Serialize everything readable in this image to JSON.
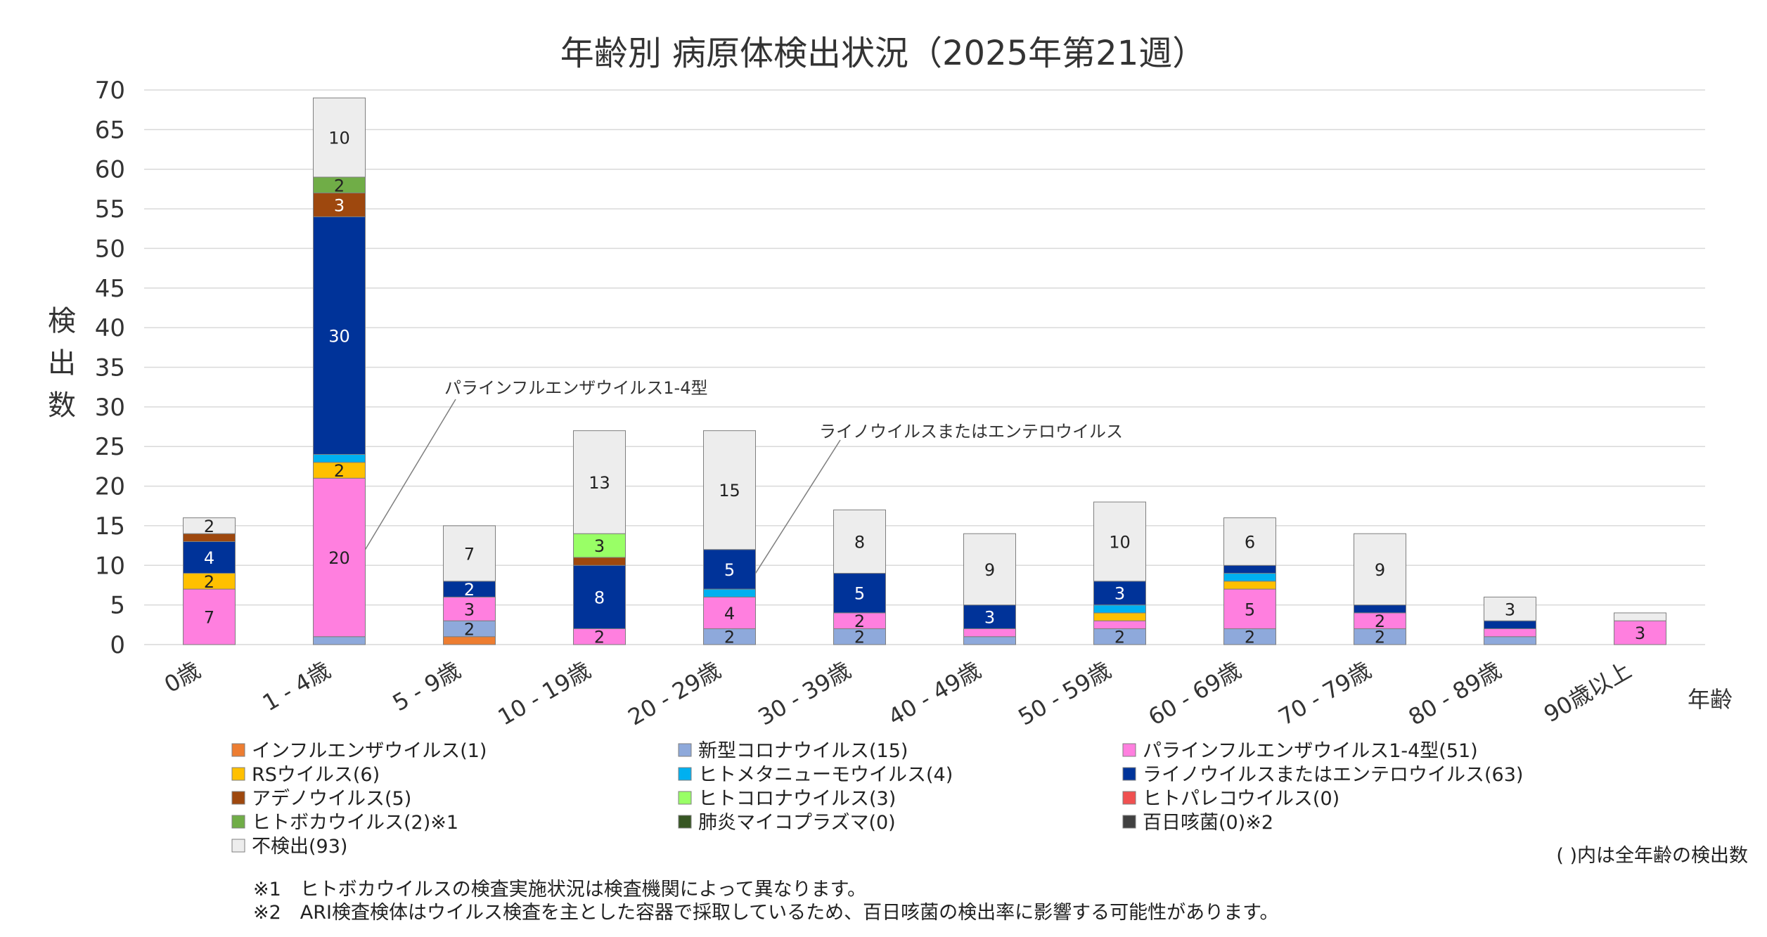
{
  "chart_data": {
    "type": "bar",
    "stacked": true,
    "title": "年齢別 病原体検出状況（2025年第21週）",
    "ylabel": "検出数",
    "xlabel": "年齢",
    "ylim": [
      0,
      70
    ],
    "yticks": [
      0,
      5,
      10,
      15,
      20,
      25,
      30,
      35,
      40,
      45,
      50,
      55,
      60,
      65,
      70
    ],
    "grid": true,
    "legend_position": "bottom",
    "categories": [
      "0歳",
      "1 - 4歳",
      "5 - 9歳",
      "10 - 19歳",
      "20 - 29歳",
      "30 - 39歳",
      "40 - 49歳",
      "50 - 59歳",
      "60 - 69歳",
      "70 - 79歳",
      "80 - 89歳",
      "90歳以上"
    ],
    "series": [
      {
        "name": "インフルエンザウイルス(1)",
        "color": "#ED7D31",
        "values": [
          0,
          0,
          1,
          0,
          0,
          0,
          0,
          0,
          0,
          0,
          0,
          0
        ]
      },
      {
        "name": "新型コロナウイルス(15)",
        "color": "#8EA9DB",
        "values": [
          0,
          1,
          2,
          0,
          2,
          2,
          1,
          2,
          2,
          2,
          1,
          0
        ]
      },
      {
        "name": "パラインフルエンザウイルス1-4型(51)",
        "color": "#FF7FDF",
        "values": [
          7,
          20,
          3,
          2,
          4,
          2,
          1,
          1,
          5,
          2,
          1,
          3
        ]
      },
      {
        "name": "RSウイルス(6)",
        "color": "#FFC000",
        "values": [
          2,
          2,
          0,
          0,
          0,
          0,
          0,
          1,
          1,
          0,
          0,
          0
        ]
      },
      {
        "name": "ヒトメタニューモウイルス(4)",
        "color": "#00B0F0",
        "values": [
          0,
          1,
          0,
          0,
          1,
          0,
          0,
          1,
          1,
          0,
          0,
          0
        ]
      },
      {
        "name": "ライノウイルスまたはエンテロウイルス(63)",
        "color": "#003399",
        "values": [
          4,
          30,
          2,
          8,
          5,
          5,
          3,
          3,
          1,
          1,
          1,
          0
        ]
      },
      {
        "name": "アデノウイルス(5)",
        "color": "#9E480E",
        "values": [
          1,
          3,
          0,
          1,
          0,
          0,
          0,
          0,
          0,
          0,
          0,
          0
        ]
      },
      {
        "name": "ヒトコロナウイルス(3)",
        "color": "#99FF66",
        "values": [
          0,
          0,
          0,
          3,
          0,
          0,
          0,
          0,
          0,
          0,
          0,
          0
        ]
      },
      {
        "name": "ヒトパレコウイルス(0)",
        "color": "#F05050",
        "values": [
          0,
          0,
          0,
          0,
          0,
          0,
          0,
          0,
          0,
          0,
          0,
          0
        ]
      },
      {
        "name": "ヒトボカウイルス(2)※1",
        "color": "#70AD47",
        "values": [
          0,
          2,
          0,
          0,
          0,
          0,
          0,
          0,
          0,
          0,
          0,
          0
        ]
      },
      {
        "name": "肺炎マイコプラズマ(0)",
        "color": "#375623",
        "values": [
          0,
          0,
          0,
          0,
          0,
          0,
          0,
          0,
          0,
          0,
          0,
          0
        ]
      },
      {
        "name": "百日咳菌(0)※2",
        "color": "#404040",
        "values": [
          0,
          0,
          0,
          0,
          0,
          0,
          0,
          0,
          0,
          0,
          0,
          0
        ]
      },
      {
        "name": "不検出(93)",
        "color": "#EDEDED",
        "values": [
          2,
          10,
          7,
          13,
          15,
          8,
          9,
          10,
          6,
          9,
          3,
          1
        ]
      }
    ],
    "data_labels": [
      {
        "category": "0歳",
        "series": "パラインフルエンザウイルス1-4型(51)",
        "text": "7"
      },
      {
        "category": "0歳",
        "series": "RSウイルス(6)",
        "text": "2"
      },
      {
        "category": "0歳",
        "series": "ライノウイルスまたはエンテロウイルス(63)",
        "text": "4"
      },
      {
        "category": "0歳",
        "series": "不検出(93)",
        "text": "2"
      },
      {
        "category": "1 - 4歳",
        "series": "パラインフルエンザウイルス1-4型(51)",
        "text": "20"
      },
      {
        "category": "1 - 4歳",
        "series": "RSウイルス(6)",
        "text": "2"
      },
      {
        "category": "1 - 4歳",
        "series": "ライノウイルスまたはエンテロウイルス(63)",
        "text": "30"
      },
      {
        "category": "1 - 4歳",
        "series": "アデノウイルス(5)",
        "text": "3"
      },
      {
        "category": "1 - 4歳",
        "series": "ヒトボカウイルス(2)※1",
        "text": "2"
      },
      {
        "category": "1 - 4歳",
        "series": "不検出(93)",
        "text": "10"
      },
      {
        "category": "5 - 9歳",
        "series": "新型コロナウイルス(15)",
        "text": "2"
      },
      {
        "category": "5 - 9歳",
        "series": "パラインフルエンザウイルス1-4型(51)",
        "text": "3"
      },
      {
        "category": "5 - 9歳",
        "series": "ライノウイルスまたはエンテロウイルス(63)",
        "text": "2"
      },
      {
        "category": "5 - 9歳",
        "series": "不検出(93)",
        "text": "7"
      },
      {
        "category": "10 - 19歳",
        "series": "パラインフルエンザウイルス1-4型(51)",
        "text": "2"
      },
      {
        "category": "10 - 19歳",
        "series": "ライノウイルスまたはエンテロウイルス(63)",
        "text": "8"
      },
      {
        "category": "10 - 19歳",
        "series": "ヒトコロナウイルス(3)",
        "text": "3"
      },
      {
        "category": "10 - 19歳",
        "series": "不検出(93)",
        "text": "13"
      },
      {
        "category": "20 - 29歳",
        "series": "新型コロナウイルス(15)",
        "text": "2"
      },
      {
        "category": "20 - 29歳",
        "series": "パラインフルエンザウイルス1-4型(51)",
        "text": "4"
      },
      {
        "category": "20 - 29歳",
        "series": "ライノウイルスまたはエンテロウイルス(63)",
        "text": "5"
      },
      {
        "category": "20 - 29歳",
        "series": "不検出(93)",
        "text": "15"
      },
      {
        "category": "30 - 39歳",
        "series": "新型コロナウイルス(15)",
        "text": "2"
      },
      {
        "category": "30 - 39歳",
        "series": "パラインフルエンザウイルス1-4型(51)",
        "text": "2"
      },
      {
        "category": "30 - 39歳",
        "series": "ライノウイルスまたはエンテロウイルス(63)",
        "text": "5"
      },
      {
        "category": "30 - 39歳",
        "series": "不検出(93)",
        "text": "8"
      },
      {
        "category": "40 - 49歳",
        "series": "ライノウイルスまたはエンテロウイルス(63)",
        "text": "3"
      },
      {
        "category": "40 - 49歳",
        "series": "不検出(93)",
        "text": "9"
      },
      {
        "category": "50 - 59歳",
        "series": "新型コロナウイルス(15)",
        "text": "2"
      },
      {
        "category": "50 - 59歳",
        "series": "ライノウイルスまたはエンテロウイルス(63)",
        "text": "3"
      },
      {
        "category": "50 - 59歳",
        "series": "不検出(93)",
        "text": "10"
      },
      {
        "category": "60 - 69歳",
        "series": "新型コロナウイルス(15)",
        "text": "2"
      },
      {
        "category": "60 - 69歳",
        "series": "パラインフルエンザウイルス1-4型(51)",
        "text": "5"
      },
      {
        "category": "60 - 69歳",
        "series": "不検出(93)",
        "text": "6"
      },
      {
        "category": "70 - 79歳",
        "series": "新型コロナウイルス(15)",
        "text": "2"
      },
      {
        "category": "70 - 79歳",
        "series": "パラインフルエンザウイルス1-4型(51)",
        "text": "2"
      },
      {
        "category": "70 - 79歳",
        "series": "不検出(93)",
        "text": "9"
      },
      {
        "category": "80 - 89歳",
        "series": "不検出(93)",
        "text": "3"
      },
      {
        "category": "90歳以上",
        "series": "パラインフルエンザウイルス1-4型(51)",
        "text": "3"
      }
    ],
    "annotations": [
      {
        "text": "パラインフルエンザウイルス1-4型",
        "category": "1 - 4歳",
        "series": "パラインフルエンザウイルス1-4型(51)"
      },
      {
        "text": "ライノウイルスまたはエンテロウイルス",
        "category": "20 - 29歳",
        "series": "ライノウイルスまたはエンテロウイルス(63)"
      }
    ]
  },
  "footnotes": {
    "legend_note": "( )内は全年齢の検出数",
    "note1": "※1　ヒトボカウイルスの検査実施状況は検査機関によって異なります。",
    "note2": "※2　ARI検査検体はウイルス検査を主とした容器で採取しているため、百日咳菌の検出率に影響する可能性があります。"
  }
}
